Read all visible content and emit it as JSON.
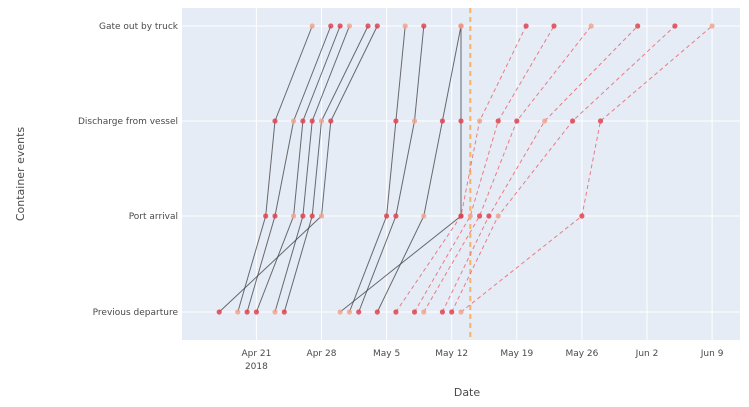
{
  "chart_data": {
    "type": "line",
    "xlabel": "Date",
    "ylabel": "Container events",
    "categories": [
      "Previous departure",
      "Port arrival",
      "Discharge from vessel",
      "Gate out by truck"
    ],
    "x_ticks": [
      {
        "date": "2018-04-21",
        "label": "Apr 21",
        "sublabel": "2018"
      },
      {
        "date": "2018-04-28",
        "label": "Apr 28",
        "sublabel": ""
      },
      {
        "date": "2018-05-05",
        "label": "May 5",
        "sublabel": ""
      },
      {
        "date": "2018-05-12",
        "label": "May 12",
        "sublabel": ""
      },
      {
        "date": "2018-05-19",
        "label": "May 19",
        "sublabel": ""
      },
      {
        "date": "2018-05-26",
        "label": "May 26",
        "sublabel": ""
      },
      {
        "date": "2018-06-02",
        "label": "Jun 2",
        "sublabel": ""
      },
      {
        "date": "2018-06-09",
        "label": "Jun 9",
        "sublabel": ""
      }
    ],
    "xlim": [
      "2018-04-13",
      "2018-06-12"
    ],
    "reference_date": "2018-05-14",
    "grid": true,
    "colors": {
      "plot_bg": "#e5ecf6",
      "solid_line": "#3c3c3c",
      "dashed_line": "#e8707a",
      "marker": "#e0434f",
      "marker_light": "#f2a38d",
      "reference_line": "#f5b26b"
    },
    "series": [
      {
        "style": "solid",
        "points": [
          "2018-04-19",
          "2018-04-22",
          "2018-04-23",
          "2018-04-27"
        ]
      },
      {
        "style": "solid",
        "points": [
          "2018-04-20",
          "2018-04-23",
          "2018-04-25",
          "2018-04-29"
        ]
      },
      {
        "style": "solid",
        "points": [
          "2018-04-21",
          "2018-04-25",
          "2018-04-26",
          "2018-04-30"
        ]
      },
      {
        "style": "solid",
        "points": [
          "2018-04-23",
          "2018-04-26",
          "2018-04-27",
          "2018-05-01"
        ]
      },
      {
        "style": "solid",
        "points": [
          "2018-04-24",
          "2018-04-27",
          "2018-04-28",
          "2018-05-03"
        ]
      },
      {
        "style": "solid",
        "points": [
          "2018-04-17",
          "2018-04-28",
          "2018-04-29",
          "2018-05-04"
        ]
      },
      {
        "style": "solid",
        "points": [
          "2018-05-01",
          "2018-05-05",
          "2018-05-06",
          "2018-05-07"
        ]
      },
      {
        "style": "solid",
        "points": [
          "2018-05-02",
          "2018-05-06",
          "2018-05-08",
          "2018-05-09"
        ]
      },
      {
        "style": "solid",
        "points": [
          "2018-05-04",
          "2018-05-09",
          "2018-05-11",
          "2018-05-13"
        ]
      },
      {
        "style": "solid",
        "points": [
          "2018-04-30",
          "2018-05-13",
          "2018-05-13",
          "2018-05-13"
        ]
      },
      {
        "style": "dashed",
        "points": [
          "2018-05-06",
          "2018-05-13",
          "2018-05-15",
          "2018-05-20"
        ]
      },
      {
        "style": "dashed",
        "points": [
          "2018-05-08",
          "2018-05-14",
          "2018-05-17",
          "2018-05-23"
        ]
      },
      {
        "style": "dashed",
        "points": [
          "2018-05-09",
          "2018-05-15",
          "2018-05-19",
          "2018-05-27"
        ]
      },
      {
        "style": "dashed",
        "points": [
          "2018-05-11",
          "2018-05-16",
          "2018-05-22",
          "2018-06-01"
        ]
      },
      {
        "style": "dashed",
        "points": [
          "2018-05-12",
          "2018-05-17",
          "2018-05-25",
          "2018-06-05"
        ]
      },
      {
        "style": "dashed",
        "points": [
          "2018-05-13",
          "2018-05-26",
          "2018-05-28",
          "2018-06-09"
        ]
      }
    ]
  }
}
